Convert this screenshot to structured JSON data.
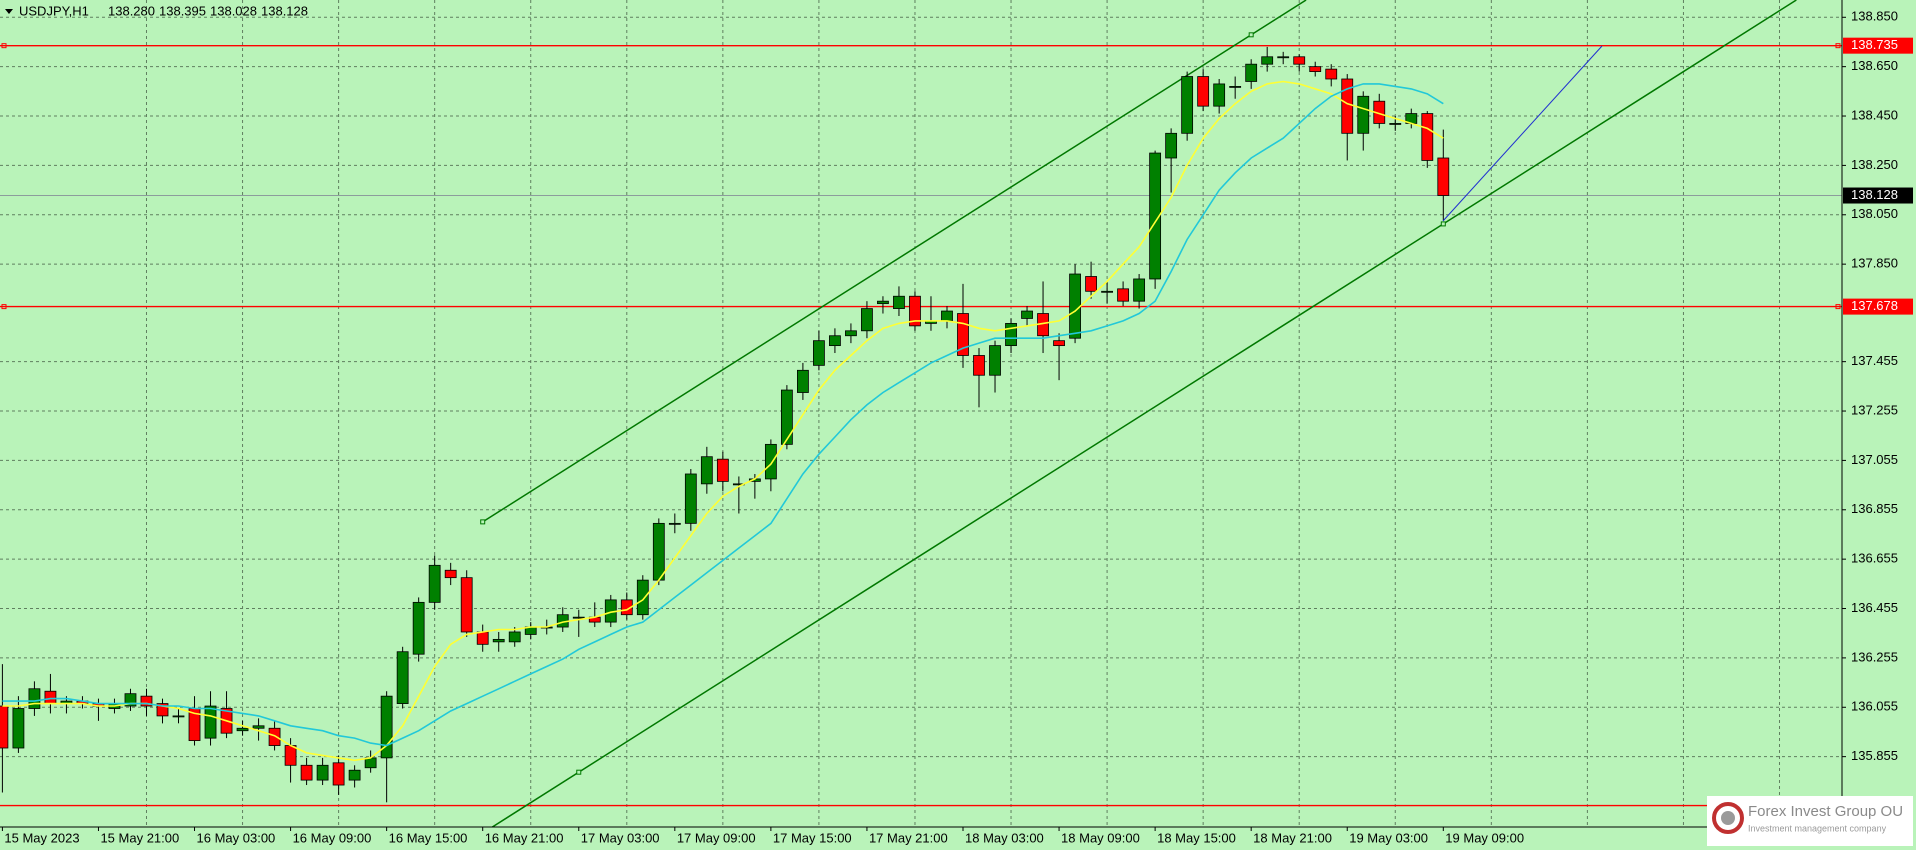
{
  "chart_data": {
    "type": "candlestick",
    "header": {
      "symbol": "USDJPY,H1",
      "values": [
        138.28,
        138.395,
        138.028,
        138.128
      ],
      "value_labels": [
        "138.280",
        "138.395",
        "138.028",
        "138.128"
      ]
    },
    "categories": [
      "15 May 2023",
      null,
      null,
      null,
      null,
      null,
      "15 May 21:00",
      null,
      null,
      null,
      null,
      null,
      "16 May 03:00",
      null,
      null,
      null,
      null,
      null,
      "16 May 09:00",
      null,
      null,
      null,
      null,
      null,
      "16 May 15:00",
      null,
      null,
      null,
      null,
      null,
      "16 May 21:00",
      null,
      null,
      null,
      null,
      null,
      "17 May 03:00",
      null,
      null,
      null,
      null,
      null,
      "17 May 09:00",
      null,
      null,
      null,
      null,
      null,
      "17 May 15:00",
      null,
      null,
      null,
      null,
      null,
      "17 May 21:00",
      null,
      null,
      null,
      null,
      null,
      "18 May 03:00",
      null,
      null,
      null,
      null,
      null,
      "18 May 09:00",
      null,
      null,
      null,
      null,
      null,
      "18 May 15:00",
      null,
      null,
      null,
      null,
      null,
      "18 May 21:00",
      null,
      null,
      null,
      null,
      null,
      "19 May 03:00",
      null,
      null,
      null,
      null,
      null,
      "19 May 09:00"
    ],
    "open": [
      136.06,
      135.89,
      136.05,
      136.12,
      136.07,
      136.08,
      136.07,
      136.05,
      136.06,
      136.1,
      136.07,
      136.02,
      136.05,
      135.93,
      136.05,
      135.96,
      135.97,
      135.97,
      135.9,
      135.82,
      135.76,
      135.83,
      135.76,
      135.81,
      135.85,
      136.07,
      136.27,
      136.48,
      136.61,
      136.58,
      136.36,
      136.32,
      136.32,
      136.35,
      136.38,
      136.38,
      136.42,
      136.42,
      136.4,
      136.49,
      136.43,
      136.57,
      136.8,
      136.8,
      136.96,
      137.06,
      136.96,
      136.97,
      136.98,
      137.12,
      137.33,
      137.44,
      137.52,
      137.56,
      137.58,
      137.69,
      137.67,
      137.72,
      137.61,
      137.62,
      137.65,
      137.48,
      137.4,
      137.52,
      137.63,
      137.65,
      137.54,
      137.55,
      137.8,
      137.74,
      137.75,
      137.7,
      137.79,
      138.28,
      138.38,
      138.61,
      138.49,
      138.57,
      138.59,
      138.66,
      138.69,
      138.69,
      138.65,
      138.64,
      138.6,
      138.38,
      138.51,
      138.42,
      138.42,
      138.46,
      138.28
    ],
    "high": [
      136.23,
      136.1,
      136.16,
      136.19,
      136.1,
      136.1,
      136.09,
      136.09,
      136.13,
      136.13,
      136.09,
      136.05,
      136.1,
      136.12,
      136.12,
      136.0,
      136.01,
      136.0,
      135.93,
      135.85,
      135.85,
      135.86,
      135.82,
      135.88,
      136.12,
      136.3,
      136.5,
      136.67,
      136.64,
      136.61,
      136.39,
      136.36,
      136.38,
      136.4,
      136.41,
      136.46,
      136.45,
      136.48,
      136.51,
      136.52,
      136.59,
      136.82,
      136.84,
      137.02,
      137.11,
      137.09,
      136.99,
      137.0,
      137.14,
      137.36,
      137.45,
      137.58,
      137.59,
      137.61,
      137.7,
      137.72,
      137.76,
      137.74,
      137.72,
      137.68,
      137.77,
      137.51,
      137.54,
      137.63,
      137.68,
      137.78,
      137.57,
      137.85,
      137.86,
      137.78,
      137.78,
      137.81,
      138.31,
      138.4,
      138.63,
      138.64,
      138.6,
      138.61,
      138.68,
      138.73,
      138.71,
      138.7,
      138.67,
      138.66,
      138.62,
      138.55,
      138.54,
      138.45,
      138.48,
      138.47,
      138.395
    ],
    "low": [
      135.71,
      135.87,
      136.02,
      136.03,
      136.03,
      136.05,
      136.0,
      136.03,
      136.04,
      136.02,
      135.99,
      135.99,
      135.9,
      135.9,
      135.93,
      135.94,
      135.92,
      135.88,
      135.75,
      135.74,
      135.74,
      135.7,
      135.73,
      135.79,
      135.67,
      136.05,
      136.24,
      136.45,
      136.55,
      136.34,
      136.28,
      136.28,
      136.3,
      136.33,
      136.35,
      136.36,
      136.34,
      136.38,
      136.38,
      136.41,
      136.41,
      136.55,
      136.76,
      136.77,
      136.92,
      136.93,
      136.84,
      136.9,
      136.93,
      137.1,
      137.3,
      137.42,
      137.49,
      137.53,
      137.55,
      137.65,
      137.64,
      137.58,
      137.58,
      137.59,
      137.43,
      137.27,
      137.33,
      137.49,
      137.6,
      137.49,
      137.38,
      137.53,
      137.71,
      137.69,
      137.68,
      137.67,
      137.75,
      138.14,
      138.35,
      138.47,
      138.46,
      138.52,
      138.56,
      138.63,
      138.66,
      138.63,
      138.61,
      138.57,
      138.27,
      138.31,
      138.4,
      138.39,
      138.4,
      138.24,
      138.028
    ],
    "close": [
      135.89,
      136.05,
      136.13,
      136.07,
      136.08,
      136.07,
      136.06,
      136.07,
      136.11,
      136.06,
      136.02,
      136.02,
      135.92,
      136.06,
      135.95,
      135.97,
      135.98,
      135.9,
      135.82,
      135.76,
      135.82,
      135.74,
      135.8,
      135.85,
      136.1,
      136.28,
      136.48,
      136.63,
      136.58,
      136.36,
      136.31,
      136.33,
      136.36,
      136.38,
      136.38,
      136.43,
      136.42,
      136.4,
      136.49,
      136.43,
      136.57,
      136.8,
      136.8,
      137.0,
      137.07,
      136.97,
      136.96,
      136.98,
      137.12,
      137.34,
      137.42,
      137.54,
      137.56,
      137.58,
      137.67,
      137.7,
      137.72,
      137.6,
      137.62,
      137.66,
      137.48,
      137.4,
      137.52,
      137.61,
      137.66,
      137.56,
      137.52,
      137.81,
      137.74,
      137.74,
      137.7,
      137.79,
      138.3,
      138.38,
      138.61,
      138.49,
      138.58,
      138.57,
      138.66,
      138.69,
      138.69,
      138.66,
      138.63,
      138.6,
      138.38,
      138.53,
      138.42,
      138.42,
      138.46,
      138.27,
      138.128
    ],
    "up_color": "#008000",
    "down_color": "#ff0000",
    "wick_color": "#000000",
    "lines": [
      {
        "color": "#ffff33",
        "values": [
          136.06,
          136.06,
          136.07,
          136.07,
          136.07,
          136.07,
          136.06,
          136.06,
          136.07,
          136.07,
          136.06,
          136.05,
          136.03,
          136.02,
          136.0,
          135.98,
          135.96,
          135.94,
          135.9,
          135.87,
          135.86,
          135.85,
          135.84,
          135.85,
          135.9,
          135.98,
          136.1,
          136.22,
          136.31,
          136.35,
          136.36,
          136.37,
          136.37,
          136.38,
          136.38,
          136.4,
          136.41,
          136.42,
          136.44,
          136.45,
          136.49,
          136.57,
          136.66,
          136.75,
          136.84,
          136.91,
          136.95,
          136.98,
          137.04,
          137.14,
          137.24,
          137.34,
          137.42,
          137.48,
          137.54,
          137.59,
          137.61,
          137.62,
          137.62,
          137.62,
          137.61,
          137.59,
          137.58,
          137.59,
          137.6,
          137.61,
          137.62,
          137.66,
          137.72,
          137.78,
          137.85,
          137.92,
          138.02,
          138.12,
          138.25,
          138.36,
          138.44,
          138.5,
          138.55,
          138.58,
          138.59,
          138.58,
          138.56,
          138.54,
          138.5,
          138.48,
          138.46,
          138.44,
          138.42,
          138.4,
          138.36
        ]
      },
      {
        "color": "#22c8d8",
        "values": [
          136.08,
          136.08,
          136.08,
          136.09,
          136.09,
          136.08,
          136.07,
          136.07,
          136.07,
          136.07,
          136.06,
          136.06,
          136.05,
          136.05,
          136.04,
          136.03,
          136.02,
          136.0,
          135.98,
          135.97,
          135.96,
          135.94,
          135.93,
          135.91,
          135.9,
          135.93,
          135.96,
          136.0,
          136.04,
          136.07,
          136.1,
          136.13,
          136.16,
          136.19,
          136.22,
          136.25,
          136.29,
          136.32,
          136.35,
          136.38,
          136.4,
          136.45,
          136.5,
          136.55,
          136.6,
          136.65,
          136.7,
          136.75,
          136.8,
          136.9,
          137.0,
          137.08,
          137.15,
          137.22,
          137.28,
          137.33,
          137.37,
          137.41,
          137.45,
          137.48,
          137.51,
          137.53,
          137.55,
          137.55,
          137.55,
          137.55,
          137.56,
          137.57,
          137.58,
          137.6,
          137.62,
          137.65,
          137.7,
          137.82,
          137.95,
          138.05,
          138.15,
          138.22,
          138.28,
          138.32,
          138.36,
          138.42,
          138.48,
          138.53,
          138.56,
          138.58,
          138.58,
          138.57,
          138.56,
          138.54,
          138.5
        ]
      }
    ],
    "levels": [
      {
        "value": 138.735,
        "color": "#ff0000",
        "show_label": true
      },
      {
        "value": 137.678,
        "color": "#ff0000",
        "show_label": true
      },
      {
        "value": 135.657,
        "color": "#ff0000",
        "show_label": false
      }
    ],
    "last_price": {
      "value": 138.128,
      "color": "#8c9c9c"
    },
    "channel": {
      "color": "#007800",
      "lines": [
        {
          "x": [
            "16 May 21:00",
            "18 May 21:00"
          ],
          "y": [
            136.806,
            138.779
          ],
          "extend_left": false
        },
        {
          "x": [
            "17 May 03:00",
            "19 May 09:00"
          ],
          "y": [
            135.792,
            138.013
          ],
          "extend_left": true
        }
      ]
    },
    "ylim": [
      135.57,
      138.92
    ],
    "yticks": [
      {
        "value": 138.85,
        "label": "138.850"
      },
      {
        "value": 138.65,
        "label": "138.650"
      },
      {
        "value": 138.45,
        "label": "138.450"
      },
      {
        "value": 138.25,
        "label": "138.250"
      },
      {
        "value": 138.05,
        "label": "138.050"
      },
      {
        "value": 137.85,
        "label": "137.850"
      },
      137.455,
      137.255,
      137.055,
      136.855,
      136.655,
      136.455,
      136.255,
      136.055,
      135.855
    ],
    "grid": true,
    "logo": {
      "title": "Forex Invest Group OU",
      "subtitle": "Investment management company"
    }
  }
}
